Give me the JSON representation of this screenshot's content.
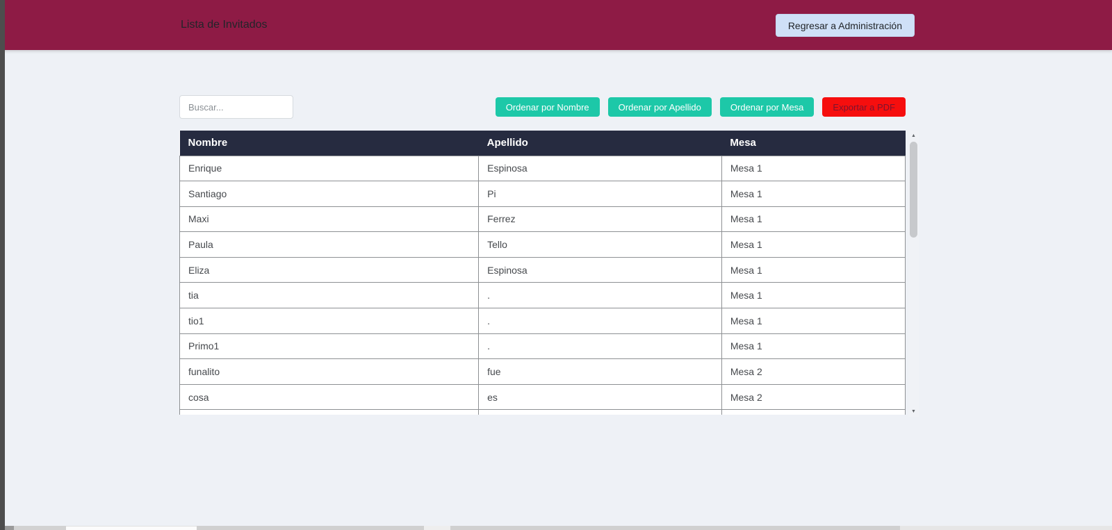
{
  "header": {
    "title": "Lista de Invitados",
    "back_button": "Regresar a Administración"
  },
  "toolbar": {
    "search_placeholder": "Buscar...",
    "buttons": [
      {
        "label": "Ordenar por Nombre",
        "type": "sort"
      },
      {
        "label": "Ordenar por Apellido",
        "type": "sort"
      },
      {
        "label": "Ordenar por Mesa",
        "type": "sort"
      },
      {
        "label": "Exportar a PDF",
        "type": "export"
      }
    ]
  },
  "table": {
    "columns": [
      "Nombre",
      "Apellido",
      "Mesa"
    ],
    "rows": [
      [
        "Enrique",
        "Espinosa",
        "Mesa 1"
      ],
      [
        "Santiago",
        "Pi",
        "Mesa 1"
      ],
      [
        "Maxi",
        "Ferrez",
        "Mesa 1"
      ],
      [
        "Paula",
        "Tello",
        "Mesa 1"
      ],
      [
        "Eliza",
        "Espinosa",
        "Mesa 1"
      ],
      [
        "tia",
        ".",
        "Mesa 1"
      ],
      [
        "tio1",
        ".",
        "Mesa 1"
      ],
      [
        "Primo1",
        ".",
        "Mesa 1"
      ],
      [
        "funalito",
        "fue",
        "Mesa 2"
      ],
      [
        "cosa",
        "es",
        "Mesa 2"
      ]
    ]
  },
  "scrollbar": {
    "up_glyph": "▲",
    "down_glyph": "▼"
  },
  "colors": {
    "header_bg": "#8e1b45",
    "back_button_bg": "#cfe0f7",
    "sort_button_bg": "#1dc8a8",
    "export_button_bg": "#f60e0e",
    "export_button_text": "#7c1430",
    "table_header_bg": "#262b40",
    "row_border": "#8d9093",
    "page_bg": "#eef1f6"
  }
}
